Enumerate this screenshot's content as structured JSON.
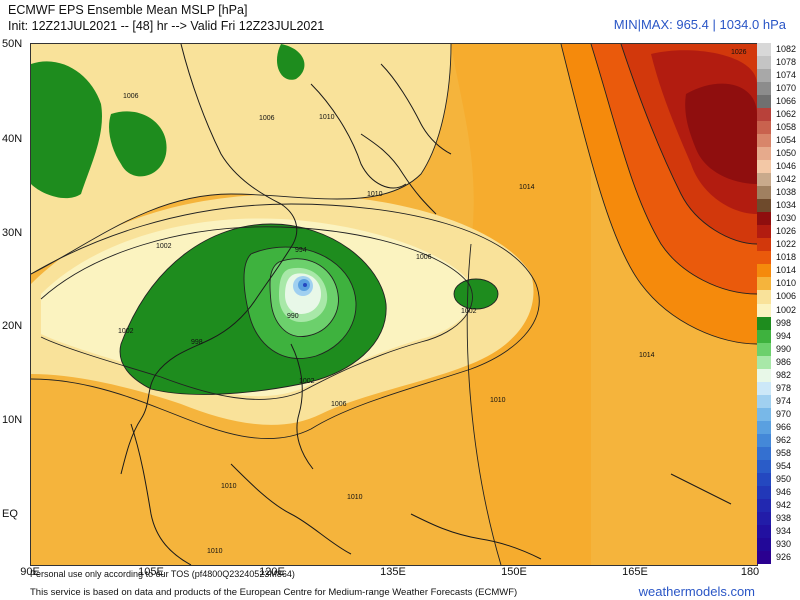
{
  "header": {
    "title": "ECMWF EPS Ensemble Mean MSLP [hPa]",
    "init": "Init: 12Z21JUL2021 -- [48] hr --> Valid Fri 12Z23JUL2021",
    "minmax": "MIN|MAX: 965.4 | 1034.0 hPa"
  },
  "map": {
    "lat_labels": [
      "50N",
      "40N",
      "30N",
      "20N",
      "10N",
      "EQ"
    ],
    "lon_labels": [
      "90E",
      "105E",
      "120E",
      "135E",
      "150E",
      "165E",
      "180"
    ],
    "isobar_labels": [
      "1006",
      "1006",
      "1010",
      "1010",
      "1002",
      "994",
      "990",
      "1002",
      "1006",
      "1010",
      "1014",
      "1014",
      "1006",
      "1002",
      "1002",
      "998",
      "1010",
      "1010",
      "1010",
      "1026"
    ],
    "storm_center": {
      "lat": 25,
      "lon": 122,
      "pressure_min": 965.4
    },
    "high_center": {
      "lat": 42,
      "lon": 178,
      "pressure_max": 1034.0
    }
  },
  "legend": {
    "levels": [
      "1082",
      "1078",
      "1074",
      "1070",
      "1066",
      "1062",
      "1058",
      "1054",
      "1050",
      "1046",
      "1042",
      "1038",
      "1034",
      "1030",
      "1026",
      "1022",
      "1018",
      "1014",
      "1010",
      "1006",
      "1002",
      "998",
      "994",
      "990",
      "986",
      "982",
      "978",
      "974",
      "970",
      "966",
      "962",
      "958",
      "954",
      "950",
      "946",
      "942",
      "938",
      "934",
      "930",
      "926"
    ],
    "colors": [
      "#d8d8d8",
      "#c4c4c4",
      "#a8a8a8",
      "#8c8c8c",
      "#707070",
      "#b8413a",
      "#c9624e",
      "#d8856a",
      "#e6aa8c",
      "#f3c8a6",
      "#c9aa8c",
      "#a08060",
      "#6e4a2c",
      "#8f0e0e",
      "#b21c10",
      "#d2380c",
      "#ea5a0c",
      "#f58a0c",
      "#f5b43c",
      "#f9e29a",
      "#fbf3c0",
      "#1e8c1e",
      "#3eb23e",
      "#6cd06c",
      "#a8e8a8",
      "#e8f8e8",
      "#cce8f8",
      "#a0d0f0",
      "#78b8e8",
      "#5aa0e0",
      "#4488d8",
      "#3470d0",
      "#2a5cc8",
      "#2448c0",
      "#2238b8",
      "#2228b0",
      "#221ca8",
      "#2210a0",
      "#220898",
      "#2a0090"
    ]
  },
  "footer": {
    "tos": "Personal use only according to our TOS (pf4800Q23240523M864)",
    "source": "This service is based on data and products of the European Centre for Medium-range Weather Forecasts (ECMWF)",
    "site": "weathermodels.com"
  }
}
